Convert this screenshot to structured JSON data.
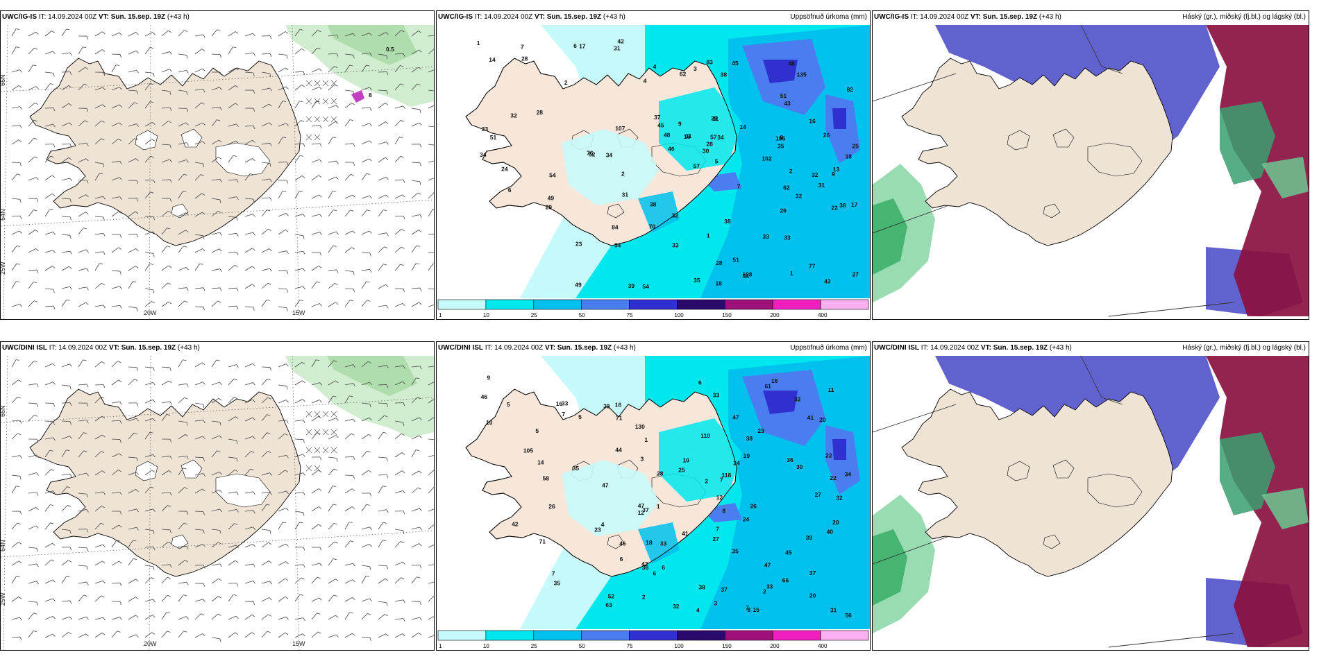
{
  "panels": [
    {
      "model": "UWC/IG-IS",
      "it": "IT: 14.09.2024 00Z",
      "vt_label": "VT:",
      "vt": "Sun. 15.sep. 19Z",
      "lead": "(+43 h)",
      "right": "",
      "type": "wind",
      "extra_label": "0.5",
      "extra_label2": "8"
    },
    {
      "model": "UWC/IG-IS",
      "it": "IT: 14.09.2024 00Z",
      "vt_label": "VT:",
      "vt": "Sun. 15.sep. 19Z",
      "lead": "(+43 h)",
      "right": "Uppsöfnuð úrkoma (mm)",
      "type": "precip"
    },
    {
      "model": "UWC/IG-IS",
      "it": "IT: 14.09.2024 00Z",
      "vt_label": "VT:",
      "vt": "Sun. 15.sep. 19Z",
      "lead": "(+43 h)",
      "right": "Háský (gr.), miðský (fj.bl.) og lágský (bl.)",
      "type": "cloud"
    },
    {
      "model": "UWC/DINI ISL",
      "it": "IT: 14.09.2024 00Z",
      "vt_label": "VT:",
      "vt": "Sun. 15.sep. 19Z",
      "lead": "(+43 h)",
      "right": "",
      "type": "wind"
    },
    {
      "model": "UWC/DINI ISL",
      "it": "IT: 14.09.2024 00Z",
      "vt_label": "VT:",
      "vt": "Sun. 15.sep. 19Z",
      "lead": "(+43 h)",
      "right": "Uppsöfnuð úrkoma (mm)",
      "type": "precip"
    },
    {
      "model": "UWC/DINI ISL",
      "it": "IT: 14.09.2024 00Z",
      "vt_label": "VT:",
      "vt": "Sun. 15.sep. 19Z",
      "lead": "(+43 h)",
      "right": "Háský (gr.), miðský (fj.bl.) og lágský (bl.)",
      "type": "cloud"
    }
  ],
  "grid_labels": {
    "lat66": "66N",
    "lat64": "64N",
    "lon25": "25W",
    "lon20": "20W",
    "lon15": "15W"
  },
  "colorbar": {
    "ticks": [
      "1",
      "10",
      "25",
      "50",
      "75",
      "100",
      "150",
      "200",
      "400"
    ],
    "colors": [
      "#c6fafa",
      "#00e8ee",
      "#00c0ee",
      "#4a7ef0",
      "#3030d0",
      "#2a0a6a",
      "#a0107a",
      "#f020c0",
      "#f8b0f0"
    ]
  },
  "precip_values_top": [
    "1",
    "2",
    "6",
    "6",
    "5",
    "1",
    "2",
    "4",
    "2",
    "1",
    "16",
    "4",
    "7",
    "3",
    "13",
    "14",
    "9",
    "11",
    "6",
    "7",
    "11",
    "17",
    "9",
    "17",
    "18",
    "37",
    "23",
    "49",
    "26",
    "62",
    "16",
    "14",
    "28",
    "26",
    "33",
    "42",
    "29",
    "38",
    "32",
    "34",
    "18",
    "22",
    "25",
    "31",
    "30",
    "45",
    "54",
    "84",
    "83",
    "62",
    "70",
    "76",
    "82",
    "102",
    "107",
    "51",
    "54",
    "32",
    "24",
    "29",
    "57",
    "28",
    "39",
    "38",
    "77",
    "48",
    "46",
    "35",
    "105",
    "57",
    "49",
    "51",
    "45",
    "31",
    "34",
    "43",
    "52",
    "54",
    "38",
    "38",
    "43",
    "35",
    "33",
    "34",
    "48",
    "34",
    "51",
    "28",
    "27",
    "28",
    "33",
    "32",
    "33",
    "31",
    "32",
    "135",
    "108"
  ],
  "precip_values_bottom": [
    "6",
    "2",
    "18",
    "5",
    "7",
    "9",
    "5",
    "2",
    "3",
    "12",
    "2",
    "11",
    "12",
    "10",
    "8",
    "6",
    "3",
    "4",
    "1",
    "4",
    "7",
    "1",
    "5",
    "7",
    "10",
    "7",
    "7",
    "8",
    "6",
    "6",
    "16",
    "19",
    "22",
    "41",
    "52",
    "35",
    "32",
    "22",
    "30",
    "20",
    "33",
    "36",
    "34",
    "61",
    "38",
    "20",
    "23",
    "27",
    "24",
    "32",
    "63",
    "25",
    "16",
    "26",
    "39",
    "47",
    "71",
    "71",
    "58",
    "38",
    "33",
    "35",
    "47",
    "41",
    "33",
    "33",
    "37",
    "36",
    "45",
    "46",
    "44",
    "37",
    "46",
    "42",
    "32",
    "28",
    "24",
    "33",
    "56",
    "47",
    "14",
    "20",
    "23",
    "37",
    "26",
    "31",
    "35",
    "27",
    "15",
    "18",
    "42",
    "47",
    "66",
    "130",
    "110",
    "105",
    "40",
    "118"
  ]
}
